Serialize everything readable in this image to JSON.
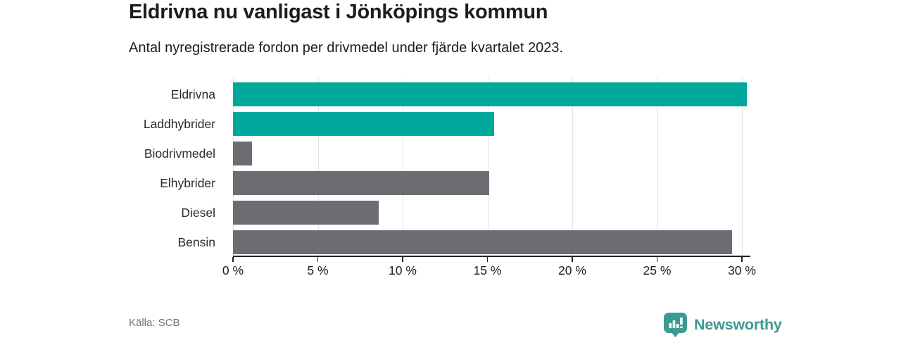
{
  "header": {
    "title": "Eldrivna nu vanligast i Jönköpings kommun",
    "subtitle": "Antal nyregistrerade fordon per drivmedel under fjärde kvartalet 2023."
  },
  "chart_data": {
    "type": "bar",
    "orientation": "horizontal",
    "title": "Eldrivna nu vanligast i Jönköpings kommun",
    "subtitle": "Antal nyregistrerade fordon per drivmedel under fjärde kvartalet 2023.",
    "categories": [
      "Eldrivna",
      "Laddhybrider",
      "Biodrivmedel",
      "Elhybrider",
      "Diesel",
      "Bensin"
    ],
    "values": [
      30.3,
      15.4,
      1.1,
      15.1,
      8.6,
      29.4
    ],
    "unit": "%",
    "bar_colors": [
      "#00a79b",
      "#00a79b",
      "#6d6c72",
      "#6d6c72",
      "#6d6c72",
      "#6d6c72"
    ],
    "xlim": [
      0,
      30.5
    ],
    "xticks": [
      0,
      5,
      10,
      15,
      20,
      25,
      30
    ],
    "xtick_labels": [
      "0 %",
      "5 %",
      "10 %",
      "15 %",
      "20 %",
      "25 %",
      "30 %"
    ],
    "xlabel": "",
    "ylabel": "",
    "grid": true,
    "legend": false
  },
  "footer": {
    "source": "Källa: SCB",
    "brand": "Newsworthy"
  },
  "colors": {
    "accent_teal": "#00a79b",
    "bar_gray": "#6d6c72",
    "grid": "#e4e4e4",
    "axis": "#222222",
    "text": "#1d1d1d",
    "muted": "#737373",
    "brand_teal": "#3c9a91"
  }
}
